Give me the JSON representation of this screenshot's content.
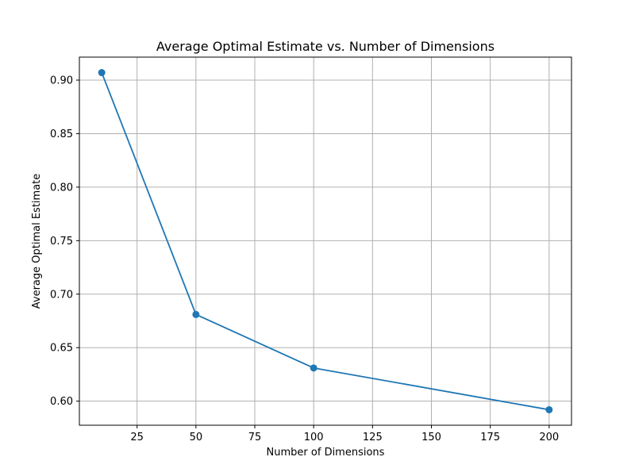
{
  "chart_data": {
    "type": "line",
    "title": "Average Optimal Estimate vs. Number of Dimensions",
    "xlabel": "Number of Dimensions",
    "ylabel": "Average Optimal Estimate",
    "x": [
      10,
      50,
      100,
      200
    ],
    "series": [
      {
        "values": [
          0.907,
          0.681,
          0.631,
          0.592
        ],
        "color": "#1f77b4",
        "marker": "circle"
      }
    ],
    "xlim": [
      0.5,
      209.5
    ],
    "ylim": [
      0.5775,
      0.9215
    ],
    "xticks": [
      25,
      50,
      75,
      100,
      125,
      150,
      175,
      200
    ],
    "xtick_labels": [
      "25",
      "50",
      "75",
      "100",
      "125",
      "150",
      "175",
      "200"
    ],
    "yticks": [
      0.6,
      0.65,
      0.7,
      0.75,
      0.8,
      0.85,
      0.9
    ],
    "ytick_labels": [
      "0.60",
      "0.65",
      "0.70",
      "0.75",
      "0.80",
      "0.85",
      "0.90"
    ],
    "grid": true,
    "legend": false
  }
}
